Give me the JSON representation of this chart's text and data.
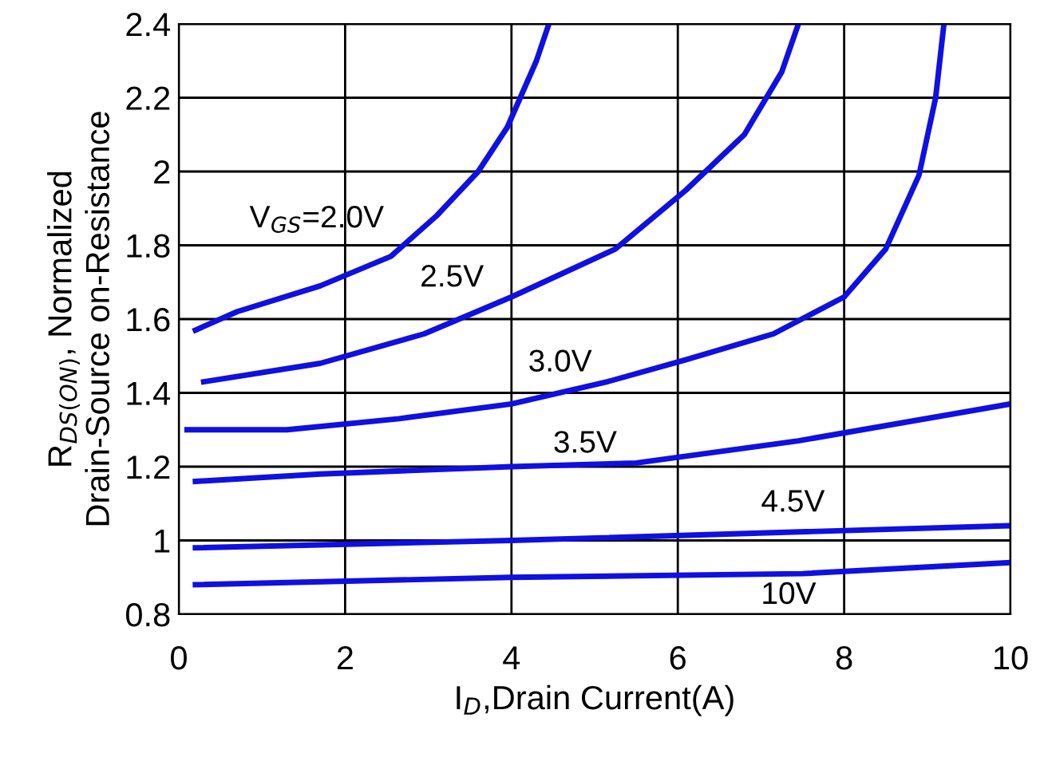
{
  "chart_data": {
    "type": "line",
    "xlabel": "I$_{D}$,Drain Current(A)",
    "ylabel": "R$_{DS(ON)}$, Normalized\nDrain-Source on-Resistance",
    "series": [
      {
        "name": "V$_{GS}$=2.0V",
        "color": "#1010e0",
        "x": [
          0.2,
          0.7,
          1.7,
          2.55,
          3.1,
          3.6,
          3.95,
          4.3,
          4.45
        ],
        "values": [
          1.57,
          1.62,
          1.69,
          1.77,
          1.88,
          2.0,
          2.12,
          2.3,
          2.4
        ]
      },
      {
        "name": "2.5V",
        "color": "#1010e0",
        "x": [
          0.3,
          1.7,
          2.95,
          4.0,
          5.25,
          6.1,
          6.8,
          7.25,
          7.45
        ],
        "values": [
          1.43,
          1.48,
          1.56,
          1.66,
          1.79,
          1.95,
          2.1,
          2.27,
          2.4
        ]
      },
      {
        "name": "3.0V",
        "color": "#1010e0",
        "x": [
          0.1,
          1.3,
          2.65,
          4.0,
          5.15,
          6.1,
          7.15,
          8.0,
          8.5,
          8.9,
          9.1,
          9.2
        ],
        "values": [
          1.3,
          1.3,
          1.33,
          1.37,
          1.43,
          1.49,
          1.56,
          1.66,
          1.79,
          1.99,
          2.2,
          2.4
        ]
      },
      {
        "name": "3.5V",
        "color": "#1010e0",
        "x": [
          0.2,
          1.7,
          4.0,
          5.5,
          7.45,
          10.0
        ],
        "values": [
          1.16,
          1.18,
          1.2,
          1.21,
          1.27,
          1.37
        ]
      },
      {
        "name": "4.5V",
        "color": "#1010e0",
        "x": [
          0.2,
          4.0,
          10.0
        ],
        "values": [
          0.98,
          1.0,
          1.04
        ]
      },
      {
        "name": "10V",
        "color": "#1010e0",
        "x": [
          0.2,
          4.0,
          7.5,
          10.0
        ],
        "values": [
          0.88,
          0.9,
          0.91,
          0.94
        ]
      }
    ],
    "xlim": [
      0,
      10
    ],
    "xticks": [
      0,
      2,
      4,
      6,
      8,
      10
    ],
    "ylim": [
      0.8,
      2.4
    ],
    "yticks": [
      0.8,
      1,
      1.2,
      1.4,
      1.6,
      1.8,
      2,
      2.2,
      2.4
    ],
    "grid": true,
    "line_style": "solid",
    "marker": "none"
  }
}
